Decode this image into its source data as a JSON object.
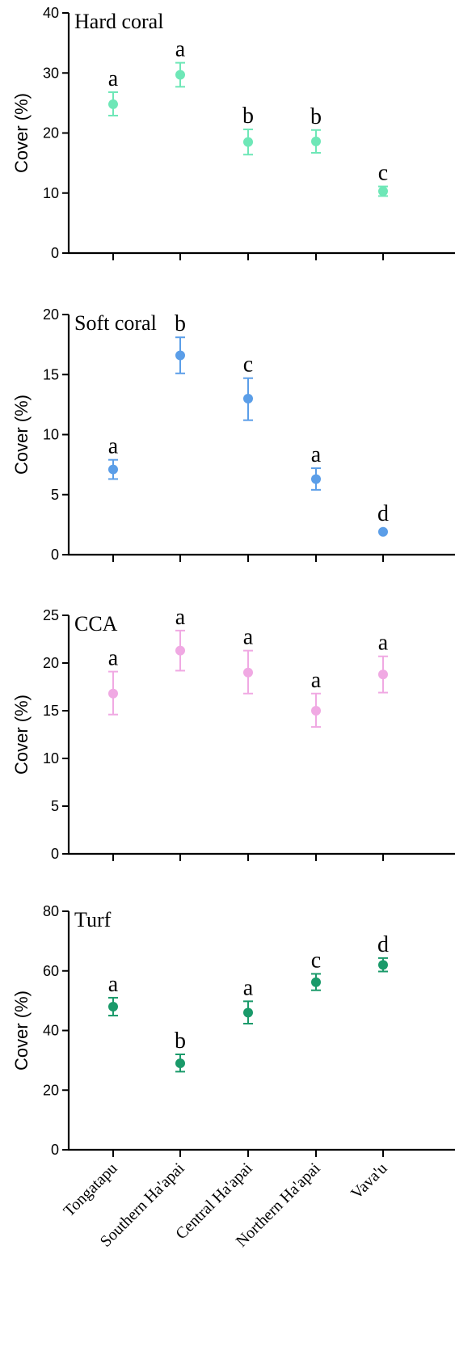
{
  "chart_data": [
    {
      "type": "scatter",
      "title": "Hard coral",
      "ylabel": "Cover  (%)",
      "ylim": [
        0,
        40
      ],
      "yticks": [
        0,
        10,
        20,
        30,
        40
      ],
      "color": "#6ee7b7",
      "categories": [
        "Tongatapu",
        "Southern Ha'apai",
        "Central Ha'apai",
        "Northern Ha'apai",
        "Vava'u"
      ],
      "values": [
        24.8,
        29.7,
        18.5,
        18.6,
        10.3
      ],
      "err_low": [
        22.9,
        27.7,
        16.4,
        16.7,
        9.5
      ],
      "err_high": [
        26.8,
        31.7,
        20.6,
        20.5,
        11.1
      ],
      "letters": [
        "a",
        "a",
        "b",
        "b",
        "c"
      ]
    },
    {
      "type": "scatter",
      "title": "Soft coral",
      "ylabel": "Cover  (%)",
      "ylim": [
        0,
        20
      ],
      "yticks": [
        0,
        5,
        10,
        15,
        20
      ],
      "color": "#5b9ee8",
      "categories": [
        "Tongatapu",
        "Southern Ha'apai",
        "Central Ha'apai",
        "Northern Ha'apai",
        "Vava'u"
      ],
      "values": [
        7.1,
        16.6,
        13.0,
        6.3,
        1.9
      ],
      "err_low": [
        6.3,
        15.1,
        11.2,
        5.4,
        1.9
      ],
      "err_high": [
        7.9,
        18.1,
        14.7,
        7.2,
        1.9
      ],
      "letters": [
        "a",
        "b",
        "c",
        "a",
        "d"
      ]
    },
    {
      "type": "scatter",
      "title": "CCA",
      "ylabel": "Cover  (%)",
      "ylim": [
        0,
        25
      ],
      "yticks": [
        0,
        5,
        10,
        15,
        20,
        25
      ],
      "color": "#f0a9e3",
      "categories": [
        "Tongatapu",
        "Southern Ha'apai",
        "Central Ha'apai",
        "Northern Ha'apai",
        "Vava'u"
      ],
      "values": [
        16.8,
        21.3,
        19.0,
        15.0,
        18.8
      ],
      "err_low": [
        14.6,
        19.2,
        16.8,
        13.3,
        16.9
      ],
      "err_high": [
        19.1,
        23.4,
        21.3,
        16.8,
        20.7
      ],
      "letters": [
        "a",
        "a",
        "a",
        "a",
        "a"
      ]
    },
    {
      "type": "scatter",
      "title": "Turf",
      "ylabel": "Cover  (%)",
      "ylim": [
        0,
        80
      ],
      "yticks": [
        0,
        20,
        40,
        60,
        80
      ],
      "color": "#1a9a6a",
      "categories": [
        "Tongatapu",
        "Southern Ha'apai",
        "Central Ha'apai",
        "Northern Ha'apai",
        "Vava'u"
      ],
      "values": [
        48.0,
        29.0,
        46.0,
        56.2,
        62.0
      ],
      "err_low": [
        45.0,
        26.2,
        42.3,
        53.5,
        59.8
      ],
      "err_high": [
        51.0,
        32.0,
        49.8,
        59.0,
        64.3
      ],
      "letters": [
        "a",
        "b",
        "a",
        "c",
        "d"
      ]
    }
  ],
  "x_categories": [
    "Tongatapu",
    "Southern Ha'apai",
    "Central Ha'apai",
    "Northern Ha'apai",
    "Vava'u"
  ]
}
